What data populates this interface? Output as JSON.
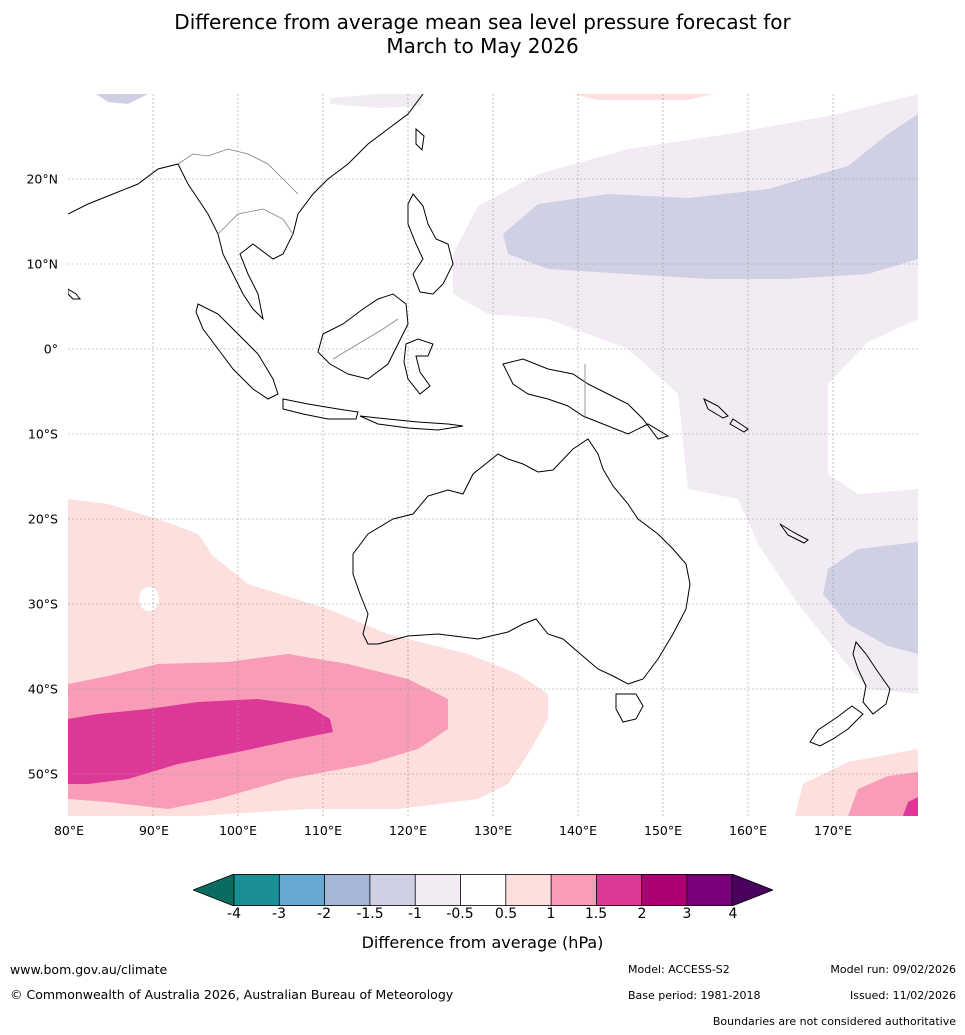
{
  "title": {
    "line1": "Difference from average mean sea level pressure forecast for",
    "line2": "March to May 2026"
  },
  "axes": {
    "lat_labels": [
      "20°N",
      "10°N",
      "0°",
      "10°S",
      "20°S",
      "30°S",
      "40°S",
      "50°S"
    ],
    "lon_labels": [
      "80°E",
      "90°E",
      "100°E",
      "110°E",
      "120°E",
      "130°E",
      "140°E",
      "150°E",
      "160°E",
      "170°E"
    ],
    "lat_range": [
      -55,
      30
    ],
    "lon_range": [
      80,
      180
    ]
  },
  "colorbar": {
    "title": "Difference from average (hPa)",
    "ticks": [
      "-4",
      "-3",
      "-2",
      "-1.5",
      "-1",
      "-0.5",
      "0.5",
      "1",
      "1.5",
      "2",
      "3",
      "4"
    ],
    "colors": [
      "#1a8f96",
      "#66aad2",
      "#a7b6d6",
      "#cfd0e4",
      "#f3ebf4",
      "#ffffff",
      "#fddfde",
      "#f89cb7",
      "#dc3897",
      "#ad0073",
      "#7a007a"
    ],
    "low_extend_color": "#0a6b5f",
    "high_extend_color": "#4a005e"
  },
  "colors": {
    "neg_light": "#f3ebf4",
    "neg_medium": "#cfd0e4",
    "pos_light": "#fddfde",
    "pos_medium": "#f89cb7",
    "pos_strong": "#dc3897",
    "land_outline": "#000000",
    "border": "#808080",
    "grid": "#9a9a9a"
  },
  "footer": {
    "website": "www.bom.gov.au/climate",
    "copyright": "© Commonwealth of Australia 2026, Australian Bureau of Meteorology",
    "model": "Model: ACCESS-S2",
    "model_run": "Model run: 09/02/2026",
    "base_period": "Base period: 1981-2018",
    "issued": "Issued: 11/02/2026",
    "disclaimer": "Boundaries are not considered authoritative"
  }
}
